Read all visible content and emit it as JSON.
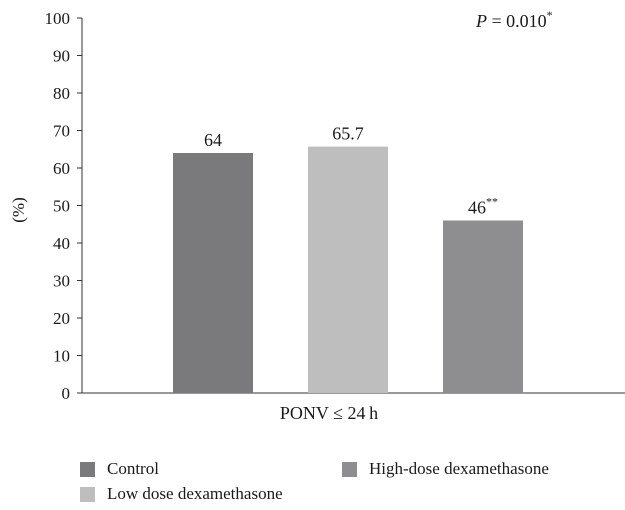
{
  "chart_data": {
    "type": "bar",
    "categories": [
      "Control",
      "Low dose dexamethasone",
      "High-dose dexamethasone"
    ],
    "values": [
      64,
      65.7,
      46
    ],
    "value_labels": [
      "64",
      "65.7",
      "46"
    ],
    "value_label_suffix": [
      "",
      "",
      "**"
    ],
    "colors": [
      "#7a7a7c",
      "#bebebf",
      "#8e8e90"
    ],
    "xlabel": "PONV ≤ 24 h",
    "ylabel": "(%)",
    "ylim": [
      0,
      100
    ],
    "yticks": [
      0,
      10,
      20,
      30,
      40,
      50,
      60,
      70,
      80,
      90,
      100
    ],
    "grid": false,
    "legend_position": "bottom",
    "annotation": {
      "p_symbol": "P",
      "p_text": " = 0.010",
      "p_superscript": "*"
    }
  },
  "legend": {
    "items": [
      {
        "label": "Control",
        "color": "#7a7a7c"
      },
      {
        "label": "High-dose dexamethasone",
        "color": "#8e8e90"
      },
      {
        "label": "Low dose dexamethasone",
        "color": "#bebebf"
      }
    ]
  }
}
